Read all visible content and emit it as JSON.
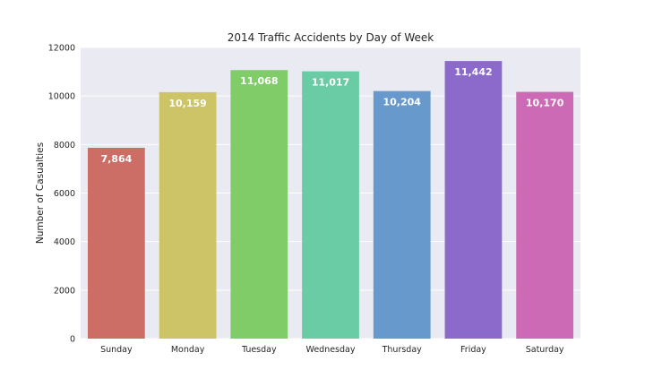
{
  "chart_data": {
    "type": "bar",
    "title": "2014 Traffic Accidents by Day of Week",
    "xlabel": "",
    "ylabel": "Number of Casualties",
    "categories": [
      "Sunday",
      "Monday",
      "Tuesday",
      "Wednesday",
      "Thursday",
      "Friday",
      "Saturday"
    ],
    "values": [
      7864,
      10159,
      11068,
      11017,
      10204,
      11442,
      10170
    ],
    "value_labels": [
      "7,864",
      "10,159",
      "11,068",
      "11,017",
      "10,204",
      "11,442",
      "10,170"
    ],
    "colors": [
      "#cc6e65",
      "#ccc466",
      "#80cc69",
      "#69cca5",
      "#6799cc",
      "#8b6acc",
      "#cc6ab5"
    ],
    "ylim": [
      0,
      12000
    ],
    "yticks": [
      0,
      2000,
      4000,
      6000,
      8000,
      10000,
      12000
    ],
    "grid": true,
    "background": "#eaeaf2",
    "legend": "none"
  }
}
